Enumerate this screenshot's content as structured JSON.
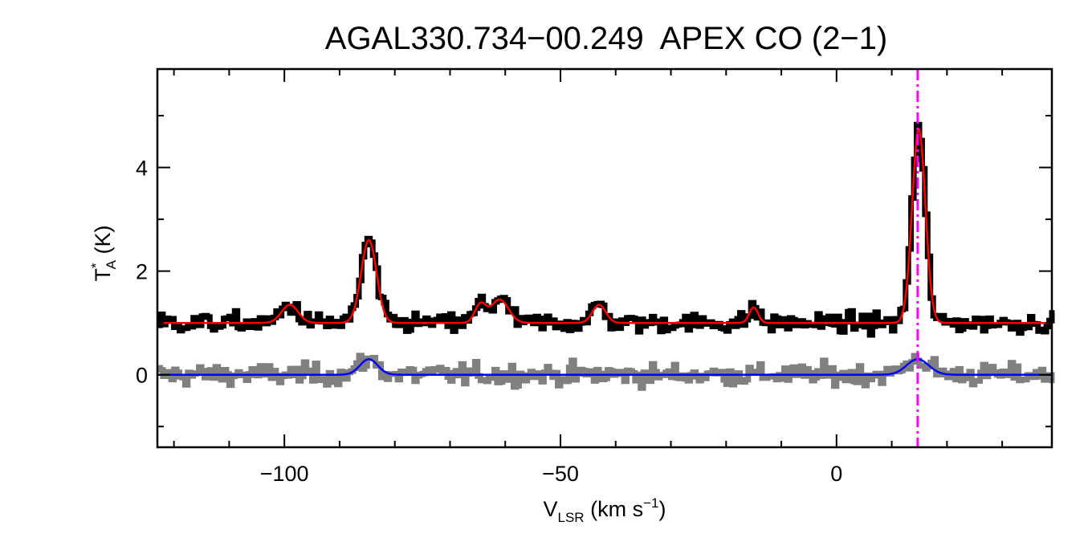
{
  "chart_data": {
    "type": "line",
    "title": "AGAL330.734−00.249  APEX CO (2−1)",
    "xlabel": {
      "main": "V",
      "sub": "LSR",
      "unit_prefix": " (km s",
      "unit_sup": "−1",
      "unit_suffix": ")"
    },
    "ylabel": {
      "main": "T",
      "sup": "*",
      "sub": "A",
      "unit": " (K)"
    },
    "xlim": [
      -123,
      39
    ],
    "ylim": [
      -1.4,
      5.9
    ],
    "x_ticks": [
      -100,
      -50,
      0
    ],
    "x_tick_labels": [
      "−100",
      "−50",
      "0"
    ],
    "y_ticks": [
      0,
      2,
      4
    ],
    "y_tick_labels": [
      "0",
      "2",
      "4"
    ],
    "grid": false,
    "marker_line": {
      "x": 14.7,
      "color": "#ff00ff",
      "style": "dash-dot"
    },
    "series": [
      {
        "role": "spectrum-offset",
        "color": "#000000",
        "baseline": 1.0,
        "components": [
          {
            "center": -99.0,
            "amplitude": 0.35,
            "width": 1.5
          },
          {
            "center": -84.7,
            "amplitude": 1.6,
            "width": 1.4
          },
          {
            "center": -64.5,
            "amplitude": 0.35,
            "width": 1.0
          },
          {
            "center": -61.0,
            "amplitude": 0.45,
            "width": 1.6
          },
          {
            "center": -43.0,
            "amplitude": 0.35,
            "width": 1.2
          },
          {
            "center": -15.0,
            "amplitude": 0.3,
            "width": 0.8
          },
          {
            "center": 14.9,
            "amplitude": 3.75,
            "width": 1.2
          }
        ],
        "noise_rms": 0.09
      },
      {
        "role": "fit-offset",
        "color": "#ff0000",
        "baseline": 1.0,
        "components_ref": 0
      },
      {
        "role": "spectrum-residual",
        "color": "#808080",
        "baseline": 0.0,
        "components": [
          {
            "center": -84.7,
            "amplitude": 0.3,
            "width": 1.6
          },
          {
            "center": 14.7,
            "amplitude": 0.3,
            "width": 2.0
          }
        ],
        "noise_rms": 0.1
      },
      {
        "role": "fit-residual",
        "color": "#0000ff",
        "baseline": 0.0,
        "components_ref": 2
      }
    ]
  }
}
